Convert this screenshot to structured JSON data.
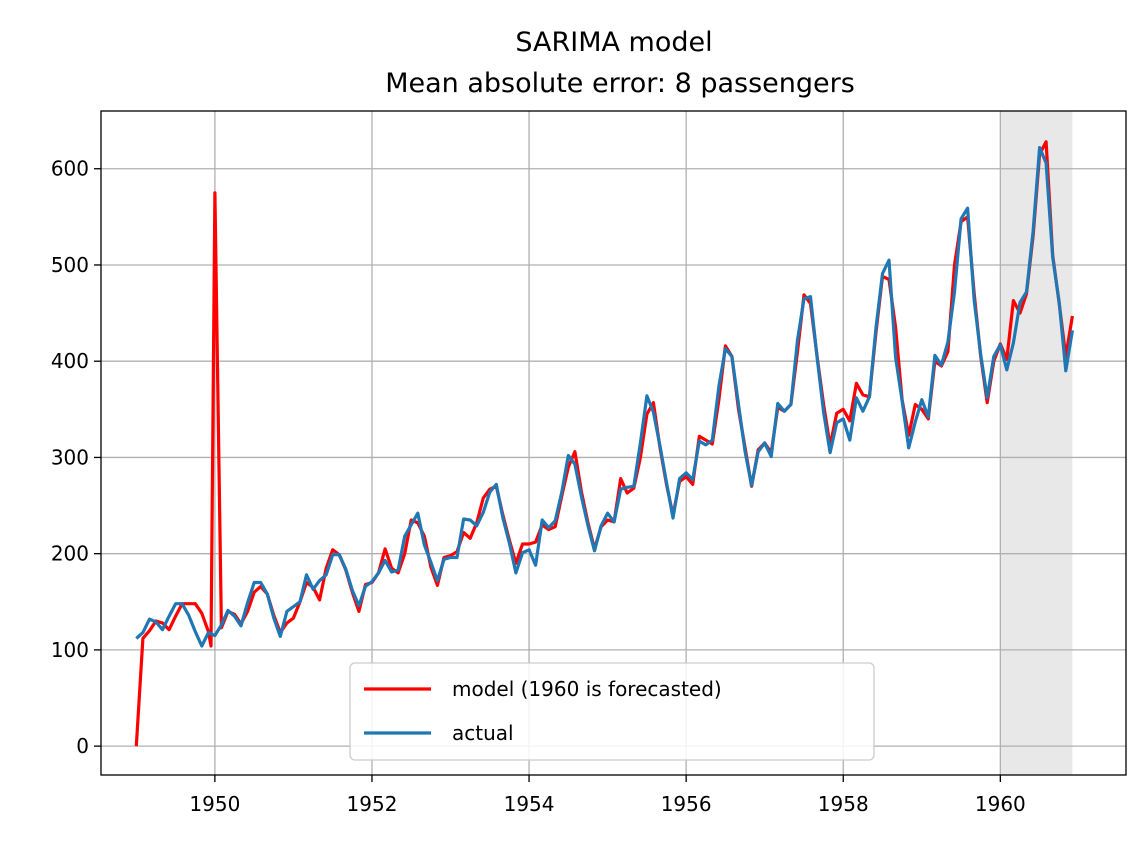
{
  "chart_data": {
    "type": "line",
    "title": "SARIMA model",
    "subtitle": "Mean absolute error: 8 passengers",
    "xlabel": "",
    "ylabel": "",
    "xlim": [
      1948.55,
      1961.6
    ],
    "ylim": [
      -30,
      660
    ],
    "grid": true,
    "legend_position": "lower center",
    "x_ticks": [
      1950,
      1952,
      1954,
      1956,
      1958,
      1960
    ],
    "x_tick_labels": [
      "1950",
      "1952",
      "1954",
      "1956",
      "1958",
      "1960"
    ],
    "y_ticks": [
      0,
      100,
      200,
      300,
      400,
      500,
      600
    ],
    "y_tick_labels": [
      "0",
      "100",
      "200",
      "300",
      "400",
      "500",
      "600"
    ],
    "forecast_span": [
      1960,
      1960.917
    ],
    "colors": {
      "model": "#ff0000",
      "actual": "#1f77b4",
      "shade": "#e8e8e8",
      "grid": "#b0b0b0"
    },
    "series": [
      {
        "name": "model (1960 is forecasted)",
        "color": "#ff0000",
        "points": [
          [
            1949.0,
            0
          ],
          [
            1949.083,
            112
          ],
          [
            1949.167,
            120
          ],
          [
            1949.25,
            130
          ],
          [
            1949.333,
            128
          ],
          [
            1949.417,
            121
          ],
          [
            1949.5,
            135
          ],
          [
            1949.583,
            148
          ],
          [
            1949.667,
            148
          ],
          [
            1949.75,
            148
          ],
          [
            1949.833,
            138
          ],
          [
            1949.917,
            119
          ],
          [
            1949.95,
            104
          ],
          [
            1950.0,
            575
          ],
          [
            1950.083,
            123
          ],
          [
            1950.167,
            140
          ],
          [
            1950.25,
            137
          ],
          [
            1950.333,
            127
          ],
          [
            1950.417,
            140
          ],
          [
            1950.5,
            160
          ],
          [
            1950.583,
            166
          ],
          [
            1950.667,
            158
          ],
          [
            1950.75,
            136
          ],
          [
            1950.833,
            118
          ],
          [
            1950.917,
            128
          ],
          [
            1951.0,
            133
          ],
          [
            1951.083,
            150
          ],
          [
            1951.167,
            170
          ],
          [
            1951.25,
            165
          ],
          [
            1951.333,
            152
          ],
          [
            1951.417,
            185
          ],
          [
            1951.5,
            204
          ],
          [
            1951.583,
            199
          ],
          [
            1951.667,
            183
          ],
          [
            1951.75,
            160
          ],
          [
            1951.833,
            140
          ],
          [
            1951.917,
            168
          ],
          [
            1952.0,
            170
          ],
          [
            1952.083,
            180
          ],
          [
            1952.167,
            205
          ],
          [
            1952.25,
            185
          ],
          [
            1952.333,
            180
          ],
          [
            1952.417,
            200
          ],
          [
            1952.5,
            235
          ],
          [
            1952.583,
            232
          ],
          [
            1952.667,
            218
          ],
          [
            1952.75,
            186
          ],
          [
            1952.833,
            167
          ],
          [
            1952.917,
            196
          ],
          [
            1953.0,
            198
          ],
          [
            1953.083,
            202
          ],
          [
            1953.167,
            222
          ],
          [
            1953.25,
            216
          ],
          [
            1953.333,
            232
          ],
          [
            1953.417,
            258
          ],
          [
            1953.5,
            267
          ],
          [
            1953.583,
            270
          ],
          [
            1953.667,
            240
          ],
          [
            1953.75,
            214
          ],
          [
            1953.833,
            190
          ],
          [
            1953.917,
            210
          ],
          [
            1954.0,
            210
          ],
          [
            1954.083,
            212
          ],
          [
            1954.167,
            230
          ],
          [
            1954.25,
            225
          ],
          [
            1954.333,
            228
          ],
          [
            1954.417,
            260
          ],
          [
            1954.5,
            290
          ],
          [
            1954.583,
            306
          ],
          [
            1954.667,
            264
          ],
          [
            1954.75,
            232
          ],
          [
            1954.833,
            205
          ],
          [
            1954.917,
            228
          ],
          [
            1955.0,
            235
          ],
          [
            1955.083,
            233
          ],
          [
            1955.167,
            278
          ],
          [
            1955.25,
            263
          ],
          [
            1955.333,
            268
          ],
          [
            1955.417,
            300
          ],
          [
            1955.5,
            345
          ],
          [
            1955.583,
            357
          ],
          [
            1955.667,
            310
          ],
          [
            1955.75,
            272
          ],
          [
            1955.833,
            240
          ],
          [
            1955.917,
            275
          ],
          [
            1956.0,
            280
          ],
          [
            1956.083,
            272
          ],
          [
            1956.167,
            322
          ],
          [
            1956.25,
            318
          ],
          [
            1956.333,
            314
          ],
          [
            1956.417,
            360
          ],
          [
            1956.5,
            416
          ],
          [
            1956.583,
            405
          ],
          [
            1956.667,
            350
          ],
          [
            1956.75,
            310
          ],
          [
            1956.833,
            270
          ],
          [
            1956.917,
            308
          ],
          [
            1957.0,
            315
          ],
          [
            1957.083,
            305
          ],
          [
            1957.167,
            352
          ],
          [
            1957.25,
            348
          ],
          [
            1957.333,
            355
          ],
          [
            1957.417,
            410
          ],
          [
            1957.5,
            469
          ],
          [
            1957.583,
            460
          ],
          [
            1957.667,
            405
          ],
          [
            1957.75,
            355
          ],
          [
            1957.833,
            312
          ],
          [
            1957.917,
            346
          ],
          [
            1958.0,
            350
          ],
          [
            1958.083,
            338
          ],
          [
            1958.167,
            377
          ],
          [
            1958.25,
            365
          ],
          [
            1958.333,
            363
          ],
          [
            1958.417,
            430
          ],
          [
            1958.5,
            488
          ],
          [
            1958.583,
            485
          ],
          [
            1958.667,
            435
          ],
          [
            1958.75,
            360
          ],
          [
            1958.833,
            323
          ],
          [
            1958.917,
            355
          ],
          [
            1959.0,
            350
          ],
          [
            1959.083,
            340
          ],
          [
            1959.167,
            400
          ],
          [
            1959.25,
            395
          ],
          [
            1959.333,
            410
          ],
          [
            1959.417,
            500
          ],
          [
            1959.5,
            545
          ],
          [
            1959.583,
            550
          ],
          [
            1959.667,
            470
          ],
          [
            1959.75,
            405
          ],
          [
            1959.833,
            357
          ],
          [
            1959.917,
            400
          ],
          [
            1960.0,
            418
          ],
          [
            1960.083,
            402
          ],
          [
            1960.167,
            463
          ],
          [
            1960.25,
            450
          ],
          [
            1960.333,
            470
          ],
          [
            1960.417,
            530
          ],
          [
            1960.5,
            615
          ],
          [
            1960.583,
            628
          ],
          [
            1960.667,
            510
          ],
          [
            1960.75,
            460
          ],
          [
            1960.833,
            405
          ],
          [
            1960.917,
            447
          ]
        ]
      },
      {
        "name": "actual",
        "color": "#1f77b4",
        "points": [
          [
            1949.0,
            112
          ],
          [
            1949.083,
            118
          ],
          [
            1949.167,
            132
          ],
          [
            1949.25,
            129
          ],
          [
            1949.333,
            121
          ],
          [
            1949.417,
            135
          ],
          [
            1949.5,
            148
          ],
          [
            1949.583,
            148
          ],
          [
            1949.667,
            136
          ],
          [
            1949.75,
            119
          ],
          [
            1949.833,
            104
          ],
          [
            1949.917,
            118
          ],
          [
            1950.0,
            115
          ],
          [
            1950.083,
            126
          ],
          [
            1950.167,
            141
          ],
          [
            1950.25,
            135
          ],
          [
            1950.333,
            125
          ],
          [
            1950.417,
            149
          ],
          [
            1950.5,
            170
          ],
          [
            1950.583,
            170
          ],
          [
            1950.667,
            158
          ],
          [
            1950.75,
            133
          ],
          [
            1950.833,
            114
          ],
          [
            1950.917,
            140
          ],
          [
            1951.0,
            145
          ],
          [
            1951.083,
            150
          ],
          [
            1951.167,
            178
          ],
          [
            1951.25,
            163
          ],
          [
            1951.333,
            172
          ],
          [
            1951.417,
            178
          ],
          [
            1951.5,
            199
          ],
          [
            1951.583,
            199
          ],
          [
            1951.667,
            184
          ],
          [
            1951.75,
            162
          ],
          [
            1951.833,
            146
          ],
          [
            1951.917,
            166
          ],
          [
            1952.0,
            171
          ],
          [
            1952.083,
            180
          ],
          [
            1952.167,
            193
          ],
          [
            1952.25,
            181
          ],
          [
            1952.333,
            183
          ],
          [
            1952.417,
            218
          ],
          [
            1952.5,
            230
          ],
          [
            1952.583,
            242
          ],
          [
            1952.667,
            209
          ],
          [
            1952.75,
            191
          ],
          [
            1952.833,
            172
          ],
          [
            1952.917,
            194
          ],
          [
            1953.0,
            196
          ],
          [
            1953.083,
            196
          ],
          [
            1953.167,
            236
          ],
          [
            1953.25,
            235
          ],
          [
            1953.333,
            229
          ],
          [
            1953.417,
            243
          ],
          [
            1953.5,
            264
          ],
          [
            1953.583,
            272
          ],
          [
            1953.667,
            237
          ],
          [
            1953.75,
            211
          ],
          [
            1953.833,
            180
          ],
          [
            1953.917,
            201
          ],
          [
            1954.0,
            204
          ],
          [
            1954.083,
            188
          ],
          [
            1954.167,
            235
          ],
          [
            1954.25,
            227
          ],
          [
            1954.333,
            234
          ],
          [
            1954.417,
            264
          ],
          [
            1954.5,
            302
          ],
          [
            1954.583,
            293
          ],
          [
            1954.667,
            259
          ],
          [
            1954.75,
            229
          ],
          [
            1954.833,
            203
          ],
          [
            1954.917,
            229
          ],
          [
            1955.0,
            242
          ],
          [
            1955.083,
            233
          ],
          [
            1955.167,
            267
          ],
          [
            1955.25,
            269
          ],
          [
            1955.333,
            270
          ],
          [
            1955.417,
            315
          ],
          [
            1955.5,
            364
          ],
          [
            1955.583,
            347
          ],
          [
            1955.667,
            312
          ],
          [
            1955.75,
            274
          ],
          [
            1955.833,
            237
          ],
          [
            1955.917,
            278
          ],
          [
            1956.0,
            284
          ],
          [
            1956.083,
            277
          ],
          [
            1956.167,
            317
          ],
          [
            1956.25,
            313
          ],
          [
            1956.333,
            318
          ],
          [
            1956.417,
            374
          ],
          [
            1956.5,
            413
          ],
          [
            1956.583,
            405
          ],
          [
            1956.667,
            355
          ],
          [
            1956.75,
            306
          ],
          [
            1956.833,
            271
          ],
          [
            1956.917,
            306
          ],
          [
            1957.0,
            315
          ],
          [
            1957.083,
            301
          ],
          [
            1957.167,
            356
          ],
          [
            1957.25,
            348
          ],
          [
            1957.333,
            355
          ],
          [
            1957.417,
            422
          ],
          [
            1957.5,
            465
          ],
          [
            1957.583,
            467
          ],
          [
            1957.667,
            404
          ],
          [
            1957.75,
            347
          ],
          [
            1957.833,
            305
          ],
          [
            1957.917,
            336
          ],
          [
            1958.0,
            340
          ],
          [
            1958.083,
            318
          ],
          [
            1958.167,
            362
          ],
          [
            1958.25,
            348
          ],
          [
            1958.333,
            363
          ],
          [
            1958.417,
            435
          ],
          [
            1958.5,
            491
          ],
          [
            1958.583,
            505
          ],
          [
            1958.667,
            404
          ],
          [
            1958.75,
            359
          ],
          [
            1958.833,
            310
          ],
          [
            1958.917,
            337
          ],
          [
            1959.0,
            360
          ],
          [
            1959.083,
            342
          ],
          [
            1959.167,
            406
          ],
          [
            1959.25,
            396
          ],
          [
            1959.333,
            420
          ],
          [
            1959.417,
            472
          ],
          [
            1959.5,
            548
          ],
          [
            1959.583,
            559
          ],
          [
            1959.667,
            463
          ],
          [
            1959.75,
            407
          ],
          [
            1959.833,
            362
          ],
          [
            1959.917,
            405
          ],
          [
            1960.0,
            417
          ],
          [
            1960.083,
            391
          ],
          [
            1960.167,
            419
          ],
          [
            1960.25,
            461
          ],
          [
            1960.333,
            472
          ],
          [
            1960.417,
            535
          ],
          [
            1960.5,
            622
          ],
          [
            1960.583,
            606
          ],
          [
            1960.667,
            508
          ],
          [
            1960.75,
            461
          ],
          [
            1960.833,
            390
          ],
          [
            1960.917,
            432
          ]
        ]
      }
    ]
  }
}
